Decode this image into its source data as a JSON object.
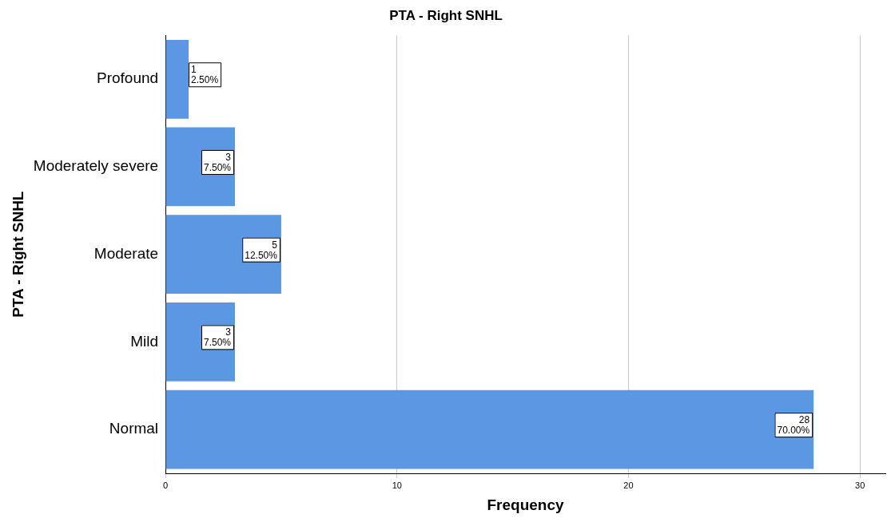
{
  "chart_data": {
    "type": "bar",
    "orientation": "horizontal",
    "title": "PTA - Right SNHL",
    "xlabel": "Frequency",
    "ylabel": "PTA - Right SNHL",
    "categories": [
      "Profound",
      "Moderately severe",
      "Moderate",
      "Mild",
      "Normal"
    ],
    "values": [
      1,
      3,
      5,
      3,
      28
    ],
    "value_labels": [
      "1\n2.50%",
      "3\n7.50%",
      "5\n12.50%",
      "3\n7.50%",
      "28\n70.00%"
    ],
    "color": "#5b97e3",
    "xlim": [
      0,
      31.1
    ],
    "xticks": [
      0,
      10,
      20,
      30
    ],
    "grid": "x",
    "legend": false
  }
}
